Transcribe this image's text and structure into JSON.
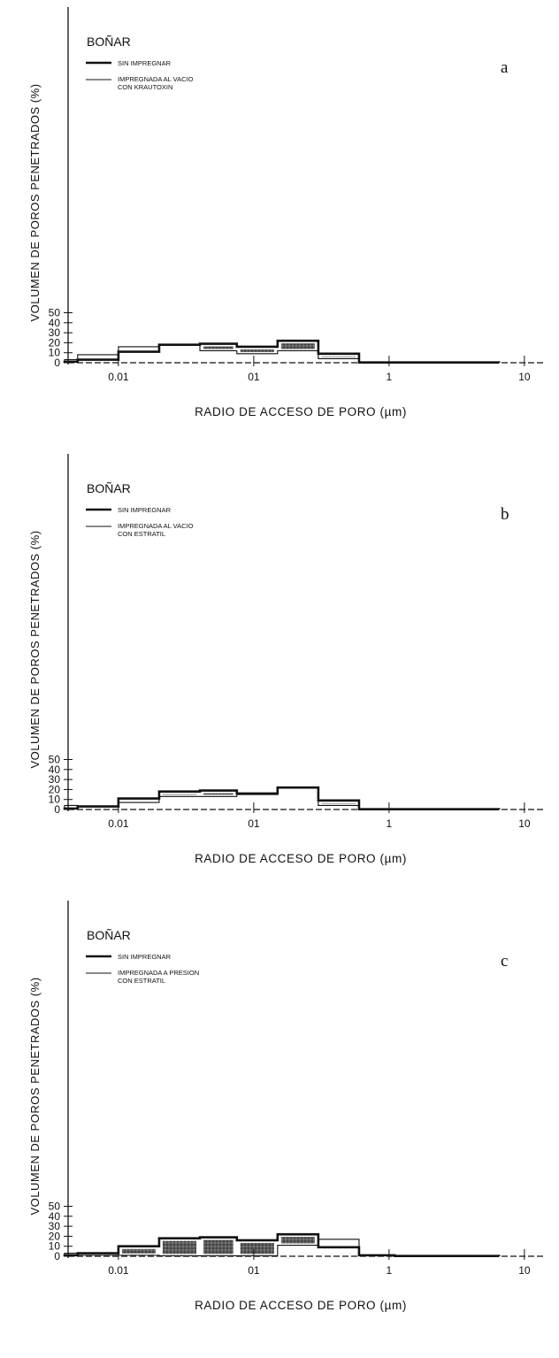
{
  "chart_data": [
    {
      "type": "histogram",
      "panel_label": "a",
      "title": "BOÑAR",
      "ylabel": "VOLUMEN DE POROS PENETRADOS (%)",
      "xlabel": "RADIO DE ACCESO DE PORO (µm)",
      "xscale": "log",
      "xlim": [
        0.004,
        15
      ],
      "ylim": [
        0,
        80
      ],
      "yticks": [
        0,
        10,
        20,
        30,
        40,
        50
      ],
      "xticks": [
        {
          "v": 0.01,
          "l": "0.01"
        },
        {
          "v": 0.1,
          "l": "01"
        },
        {
          "v": 1,
          "l": "1"
        },
        {
          "v": 10,
          "l": "10"
        }
      ],
      "bin_edges": [
        0.004,
        0.005,
        0.01,
        0.02,
        0.04,
        0.075,
        0.15,
        0.3,
        0.6,
        6.5
      ],
      "series": [
        {
          "name": "SIN IMPREGNAR",
          "style": "thick",
          "values": [
            1,
            3,
            11,
            18,
            19,
            16,
            22,
            9,
            0.3
          ]
        },
        {
          "name": "IMPREGNADA AL VACIO CON KRAUTOXIN",
          "style": "thin",
          "values": [
            3,
            8,
            16,
            18,
            12,
            9,
            12,
            4,
            0.3
          ]
        }
      ],
      "shaded_bins": [
        4,
        5,
        6,
        7
      ]
    },
    {
      "type": "histogram",
      "panel_label": "b",
      "title": "BOÑAR",
      "ylabel": "VOLUMEN DE POROS PENETRADOS (%)",
      "xlabel": "RADIO DE ACCESO DE PORO (µm)",
      "xscale": "log",
      "xlim": [
        0.004,
        15
      ],
      "ylim": [
        0,
        80
      ],
      "yticks": [
        0,
        10,
        20,
        30,
        40,
        50
      ],
      "xticks": [
        {
          "v": 0.01,
          "l": "0.01"
        },
        {
          "v": 0.1,
          "l": "01"
        },
        {
          "v": 1,
          "l": "1"
        },
        {
          "v": 10,
          "l": "10"
        }
      ],
      "bin_edges": [
        0.004,
        0.005,
        0.01,
        0.02,
        0.04,
        0.075,
        0.15,
        0.3,
        0.6,
        6.5
      ],
      "series": [
        {
          "name": "SIN IMPREGNAR",
          "style": "thick",
          "values": [
            1,
            3,
            11,
            18,
            19,
            16,
            22,
            9,
            0.3
          ]
        },
        {
          "name": "IMPREGNADA AL VACIO CON ESTRATIL",
          "style": "thin",
          "values": [
            4,
            3,
            7,
            13,
            13,
            15,
            22,
            4,
            0.3
          ]
        }
      ],
      "shaded_bins": [
        2,
        3,
        4,
        7
      ]
    },
    {
      "type": "histogram",
      "panel_label": "c",
      "title": "BOÑAR",
      "ylabel": "VOLUMEN DE POROS PENETRADOS (%)",
      "xlabel": "RADIO DE ACCESO DE PORO (µm)",
      "xscale": "log",
      "xlim": [
        0.004,
        15
      ],
      "ylim": [
        0,
        80
      ],
      "yticks": [
        0,
        10,
        20,
        30,
        40,
        50
      ],
      "xticks": [
        {
          "v": 0.01,
          "l": "0.01"
        },
        {
          "v": 0.1,
          "l": "01"
        },
        {
          "v": 1,
          "l": "1"
        },
        {
          "v": 10,
          "l": "10"
        }
      ],
      "bin_edges": [
        0.004,
        0.005,
        0.01,
        0.02,
        0.04,
        0.075,
        0.15,
        0.3,
        0.6,
        1.1,
        6.5
      ],
      "series": [
        {
          "name": "SIN IMPREGNAR",
          "style": "thick",
          "values": [
            1,
            3,
            10,
            18,
            19,
            16,
            22,
            9,
            1,
            0.3
          ]
        },
        {
          "name": "IMPREGNADA A PRESION CON ESTRATIL",
          "style": "thin",
          "values": [
            3,
            1,
            1,
            0.5,
            0.5,
            0.5,
            11,
            17,
            0.5,
            0.3
          ]
        }
      ],
      "shaded_bins": [
        1,
        2,
        3,
        4,
        5,
        6
      ]
    }
  ]
}
